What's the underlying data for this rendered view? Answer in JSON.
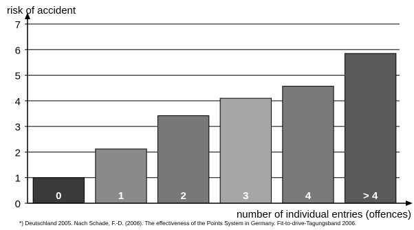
{
  "chart_data": {
    "type": "bar",
    "ylabel": "risk of accident",
    "xlabel": "number of individual entries (offences)",
    "categories": [
      "0",
      "1",
      "2",
      "3",
      "4",
      "> 4"
    ],
    "values": [
      1.0,
      2.12,
      3.42,
      4.1,
      4.57,
      5.85
    ],
    "ylim": [
      0,
      7
    ],
    "yticks": [
      0,
      1,
      2,
      3,
      4,
      5,
      6,
      7
    ],
    "grid": true,
    "bar_colors": [
      "#3a3a3a",
      "#8a8a8a",
      "#787878",
      "#a6a6a6",
      "#7a7a7a",
      "#5a5a5a"
    ]
  },
  "footnote": "*) Deutschland 2005. Nach Schade, F.-D. (2006). The effectiveness of the Points System in Germany. Fit-to-drive-Tagungsband 2006."
}
